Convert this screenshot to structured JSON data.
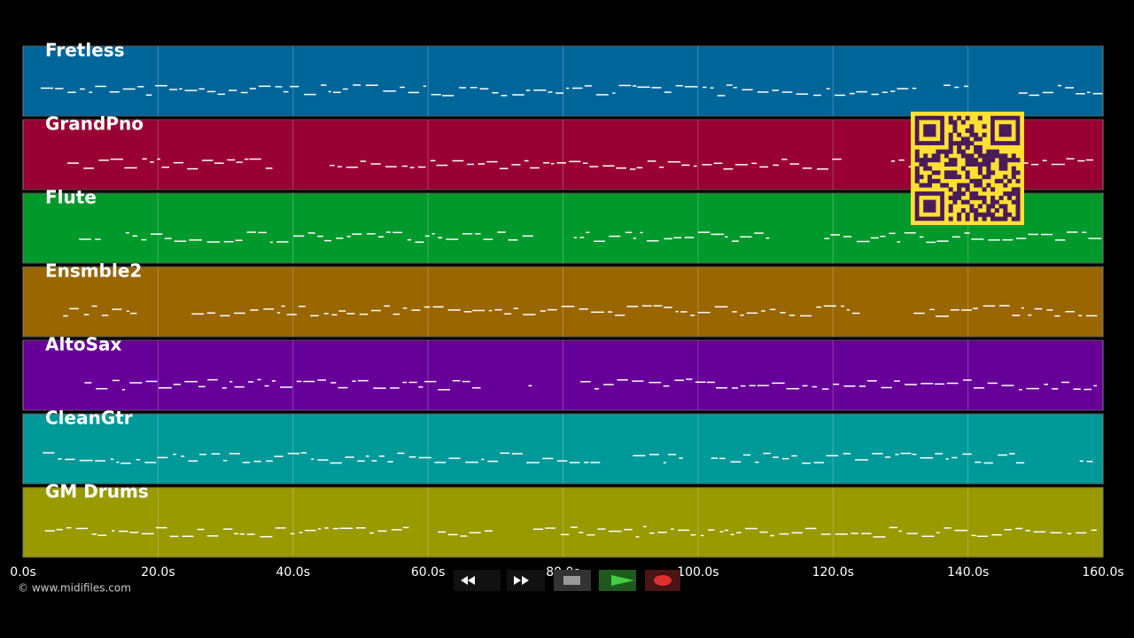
{
  "tracks": [
    {
      "name": "Fretless",
      "color": "#00669a"
    },
    {
      "name": "GrandPno",
      "color": "#990033"
    },
    {
      "name": "Flute",
      "color": "#00992c"
    },
    {
      "name": "Ensmble2",
      "color": "#996600"
    },
    {
      "name": "AltoSax",
      "color": "#660099"
    },
    {
      "name": "CleanGtr",
      "color": "#009999"
    },
    {
      "name": "GM Drums",
      "color": "#999900"
    }
  ],
  "timeline": {
    "xlim": [
      0,
      160
    ],
    "ticks": [
      {
        "value": 0,
        "label": "0.0s"
      },
      {
        "value": 20,
        "label": "20.0s"
      },
      {
        "value": 40,
        "label": "40.0s"
      },
      {
        "value": 60,
        "label": "60.0s"
      },
      {
        "value": 80,
        "label": "80.0s"
      },
      {
        "value": 100,
        "label": "100.0s"
      },
      {
        "value": 120,
        "label": "120.0s"
      },
      {
        "value": 140,
        "label": "140.0s"
      },
      {
        "value": 160,
        "label": "160.0s"
      }
    ]
  },
  "footer": {
    "copyright": "© www.midifiles.com"
  }
}
